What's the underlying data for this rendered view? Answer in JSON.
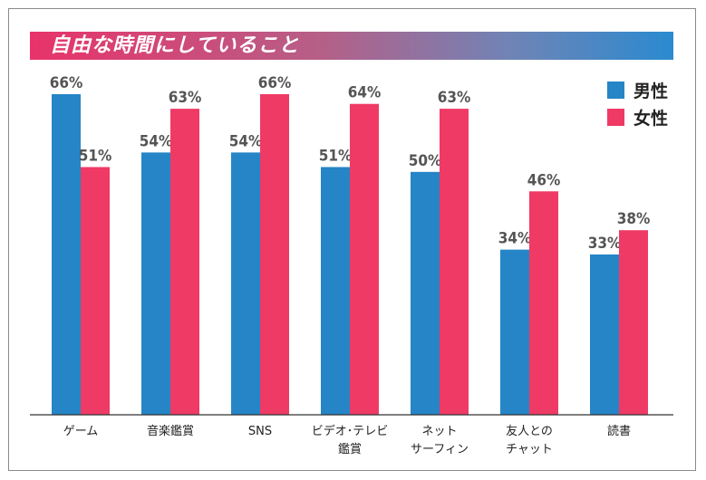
{
  "colors": {
    "male": "#2585c6",
    "female": "#ef3a65",
    "axis": "#333333",
    "label": "#555555"
  },
  "legend": [
    {
      "name": "男性",
      "color": "#2585c6"
    },
    {
      "name": "女性",
      "color": "#ef3a65"
    }
  ],
  "chart_data": {
    "type": "bar",
    "title": "自由な時間にしていること",
    "categories": [
      [
        "ゲーム"
      ],
      [
        "音楽鑑賞"
      ],
      [
        "SNS"
      ],
      [
        "ビデオ･テレビ",
        "鑑賞"
      ],
      [
        "ネット",
        "サーフィン"
      ],
      [
        "友人との",
        "チャット"
      ],
      [
        "読書"
      ]
    ],
    "series": [
      {
        "name": "男性",
        "values": [
          66,
          54,
          54,
          51,
          50,
          34,
          33
        ]
      },
      {
        "name": "女性",
        "values": [
          51,
          63,
          66,
          64,
          63,
          46,
          38
        ]
      }
    ],
    "unit": "%",
    "ylim": [
      0,
      66
    ],
    "grid": false,
    "legend_position": "top-right"
  }
}
